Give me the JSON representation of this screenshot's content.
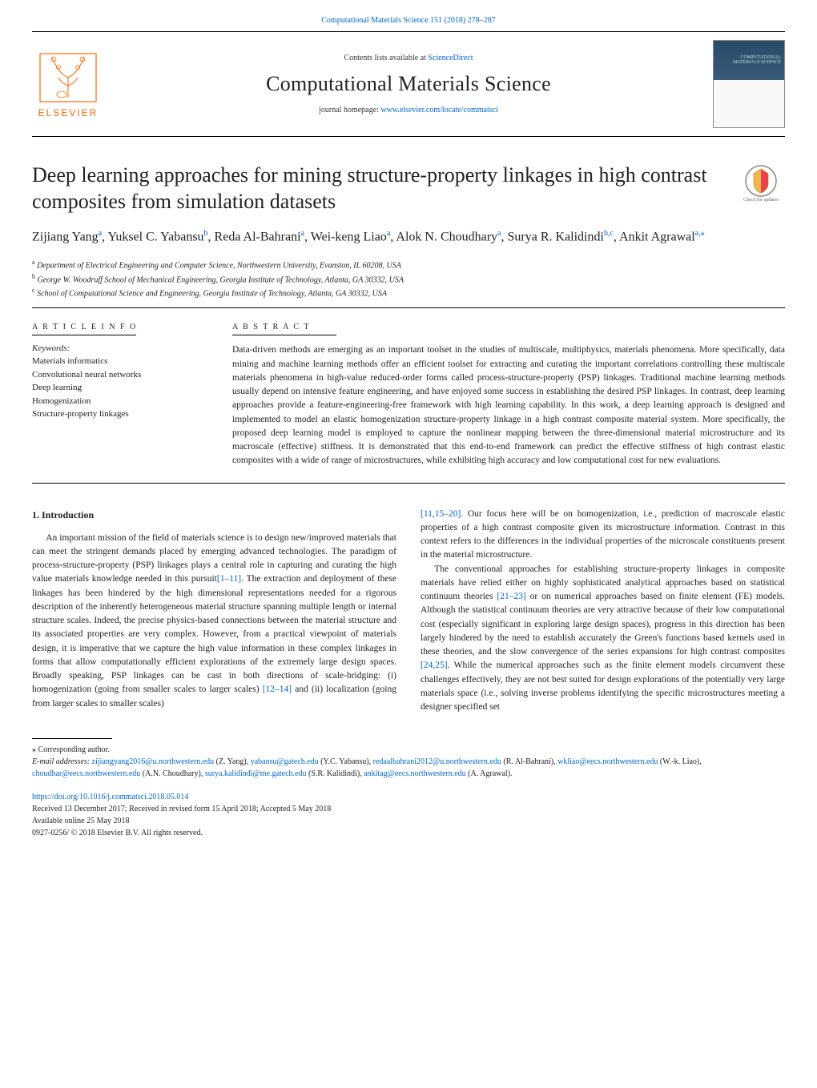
{
  "journal_ref": "Computational Materials Science 151 (2018) 278–287",
  "contents_prefix": "Contents lists available at ",
  "contents_link": "ScienceDirect",
  "journal_name": "Computational Materials Science",
  "homepage_prefix": "journal homepage: ",
  "homepage_link": "www.elsevier.com/locate/commatsci",
  "elsevier_label": "ELSEVIER",
  "cover_caption": "COMPUTATIONAL MATERIALS SCIENCE",
  "check_updates_label": "Check for updates",
  "title": "Deep learning approaches for mining structure-property linkages in high contrast composites from simulation datasets",
  "authors": [
    {
      "name": "Zijiang Yang",
      "aff": "a"
    },
    {
      "name": "Yuksel C. Yabansu",
      "aff": "b"
    },
    {
      "name": "Reda Al-Bahrani",
      "aff": "a"
    },
    {
      "name": "Wei-keng Liao",
      "aff": "a"
    },
    {
      "name": "Alok N. Choudhary",
      "aff": "a"
    },
    {
      "name": "Surya R. Kalidindi",
      "aff": "b,c"
    },
    {
      "name": "Ankit Agrawal",
      "aff": "a,",
      "corr": true
    }
  ],
  "affiliations": [
    {
      "key": "a",
      "text": "Department of Electrical Engineering and Computer Science, Northwestern University, Evanston, IL 60208, USA"
    },
    {
      "key": "b",
      "text": "George W. Woodruff School of Mechanical Engineering, Georgia Institute of Technology, Atlanta, GA 30332, USA"
    },
    {
      "key": "c",
      "text": "School of Computational Science and Engineering, Georgia Institute of Technology, Atlanta, GA 30332, USA"
    }
  ],
  "article_info_heading": "A R T I C L E  I N F O",
  "abstract_heading": "A B S T R A C T",
  "keywords_label": "Keywords:",
  "keywords": [
    "Materials informatics",
    "Convolutional neural networks",
    "Deep learning",
    "Homogenization",
    "Structure-property linkages"
  ],
  "abstract": "Data-driven methods are emerging as an important toolset in the studies of multiscale, multiphysics, materials phenomena. More specifically, data mining and machine learning methods offer an efficient toolset for extracting and curating the important correlations controlling these multiscale materials phenomena in high-value reduced-order forms called process-structure-property (PSP) linkages. Traditional machine learning methods usually depend on intensive feature engineering, and have enjoyed some success in establishing the desired PSP linkages. In contrast, deep learning approaches provide a feature-engineering-free framework with high learning capability. In this work, a deep learning approach is designed and implemented to model an elastic homogenization structure-property linkage in a high contrast composite material system. More specifically, the proposed deep learning model is employed to capture the nonlinear mapping between the three-dimensional material microstructure and its macroscale (effective) stiffness. It is demonstrated that this end-to-end framework can predict the effective stiffness of high contrast elastic composites with a wide of range of microstructures, while exhibiting high accuracy and low computational cost for new evaluations.",
  "intro_heading": "1. Introduction",
  "intro_col1_pre": "An important mission of the field of materials science is to design new/improved materials that can meet the stringent demands placed by emerging advanced technologies. The paradigm of process-structure-property (PSP) linkages plays a central role in capturing and curating the high value materials knowledge needed in this pursuit",
  "intro_ref1": "[1–11]",
  "intro_col1_mid": ". The extraction and deployment of these linkages has been hindered by the high dimensional representations needed for a rigorous description of the inherently heterogeneous material structure spanning multiple length or internal structure scales. Indeed, the precise physics-based connections between the material structure and its associated properties are very complex. However, from a practical viewpoint of materials design, it is imperative that we capture the high value information in these complex linkages in forms that allow computationally efficient explorations of the extremely large design spaces. Broadly speaking, PSP linkages can be cast in both directions of scale-bridging: (i) homogenization (going from smaller scales to larger scales) ",
  "intro_ref2": "[12–14]",
  "intro_col1_post": " and (ii) localization (going from larger scales to smaller scales)",
  "intro_col2_ref1": "[11,15–20]",
  "intro_col2_p1": ". Our focus here will be on homogenization, i.e., prediction of macroscale elastic properties of a high contrast composite given its microstructure information. Contrast in this context refers to the differences in the individual properties of the microscale constituents present in the material microstructure.",
  "intro_col2_p2_pre": "The conventional approaches for establishing structure-property linkages in composite materials have relied either on highly sophisticated analytical approaches based on statistical continuum theories ",
  "intro_col2_ref2": "[21–23]",
  "intro_col2_p2_mid": " or on numerical approaches based on finite element (FE) models. Although the statistical continuum theories are very attractive because of their low computational cost (especially significant in exploring large design spaces), progress in this direction has been largely hindered by the need to establish accurately the Green's functions based kernels used in these theories, and the slow convergence of the series expansions for high contrast composites ",
  "intro_col2_ref3": "[24,25]",
  "intro_col2_p2_post": ". While the numerical approaches such as the finite element models circumvent these challenges effectively, they are not best suited for design explorations of the potentially very large materials space (i.e., solving inverse problems identifying the specific microstructures meeting a designer specified set",
  "corr_label": "⁎ Corresponding author.",
  "emails_label": "E-mail addresses: ",
  "emails": [
    {
      "addr": "zijiangyang2016@u.northwestern.edu",
      "who": "(Z. Yang)"
    },
    {
      "addr": "yabansu@gatech.edu",
      "who": "(Y.C. Yabansu)"
    },
    {
      "addr": "redaalbahrani2012@u.northwestern.edu",
      "who": "(R. Al-Bahrani)"
    },
    {
      "addr": "wkliao@eecs.northwestern.edu",
      "who": "(W.-k. Liao)"
    },
    {
      "addr": "choudhar@eecs.northwestern.edu",
      "who": "(A.N. Choudhary)"
    },
    {
      "addr": "surya.kalidindi@me.gatech.edu",
      "who": "(S.R. Kalidindi)"
    },
    {
      "addr": "ankitag@eecs.northwestern.edu",
      "who": "(A. Agrawal)"
    }
  ],
  "doi": "https://doi.org/10.1016/j.commatsci.2018.05.014",
  "history": "Received 13 December 2017; Received in revised form 15 April 2018; Accepted 5 May 2018",
  "available": "Available online 25 May 2018",
  "copyright": "0927-0256/ © 2018 Elsevier B.V. All rights reserved.",
  "colors": {
    "link": "#0066cc",
    "elsevier_orange": "#ff6600",
    "text": "#222222",
    "cover_bg_top": "#2a4a6a"
  }
}
